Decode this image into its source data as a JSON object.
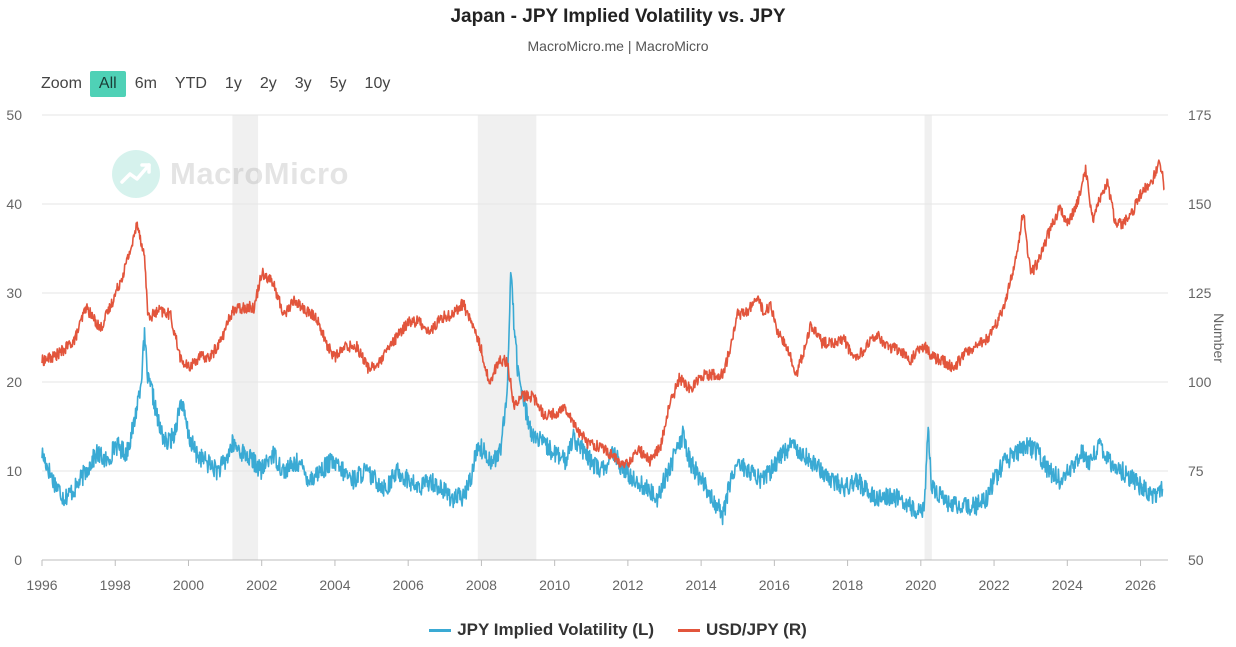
{
  "header": {
    "title": "Japan - JPY Implied Volatility vs. JPY",
    "subtitle": "MacroMicro.me | MacroMicro"
  },
  "zoom": {
    "label": "Zoom",
    "buttons": [
      "All",
      "6m",
      "YTD",
      "1y",
      "2y",
      "3y",
      "5y",
      "10y"
    ],
    "active": "All"
  },
  "watermark": {
    "text": "MacroMicro"
  },
  "chart_data": {
    "type": "line",
    "title": "Japan - JPY Implied Volatility vs. JPY",
    "subtitle": "MacroMicro.me | MacroMicro",
    "xlim": [
      1996.0,
      2026.75
    ],
    "x_ticks": [
      "1996",
      "1998",
      "2000",
      "2002",
      "2004",
      "2006",
      "2008",
      "2010",
      "2012",
      "2014",
      "2016",
      "2018",
      "2020",
      "2022",
      "2024",
      "2026"
    ],
    "y_left": {
      "ylim": [
        0,
        50
      ],
      "ticks": [
        "0",
        "10",
        "20",
        "30",
        "40",
        "50"
      ],
      "label": ""
    },
    "y_right": {
      "ylim": [
        50,
        175
      ],
      "ticks": [
        "50",
        "75",
        "100",
        "125",
        "150",
        "175"
      ],
      "label": "Number"
    },
    "grid": true,
    "legend_position": "bottom",
    "shaded_ranges": [
      [
        2001.2,
        2001.9
      ],
      [
        2007.9,
        2009.5
      ],
      [
        2020.1,
        2020.3
      ]
    ],
    "series": [
      {
        "name": "JPY Implied Volatility (L)",
        "axis": "left",
        "color": "#3aaad4",
        "points": [
          [
            1996.0,
            12
          ],
          [
            1996.3,
            9
          ],
          [
            1996.6,
            7
          ],
          [
            1996.9,
            8
          ],
          [
            1997.2,
            10
          ],
          [
            1997.5,
            12
          ],
          [
            1997.8,
            11
          ],
          [
            1998.0,
            13
          ],
          [
            1998.3,
            12
          ],
          [
            1998.5,
            15
          ],
          [
            1998.7,
            20
          ],
          [
            1998.8,
            25
          ],
          [
            1998.9,
            20
          ],
          [
            1999.0,
            19
          ],
          [
            1999.2,
            15
          ],
          [
            1999.4,
            13
          ],
          [
            1999.6,
            14
          ],
          [
            1999.8,
            18
          ],
          [
            2000.0,
            14
          ],
          [
            2000.2,
            12
          ],
          [
            2000.5,
            11
          ],
          [
            2000.8,
            10
          ],
          [
            2001.0,
            11
          ],
          [
            2001.2,
            13
          ],
          [
            2001.5,
            12
          ],
          [
            2001.8,
            11
          ],
          [
            2002.0,
            10
          ],
          [
            2002.3,
            12
          ],
          [
            2002.6,
            10
          ],
          [
            2003.0,
            11
          ],
          [
            2003.3,
            9
          ],
          [
            2003.6,
            10
          ],
          [
            2003.9,
            11
          ],
          [
            2004.2,
            10
          ],
          [
            2004.5,
            9
          ],
          [
            2004.8,
            10
          ],
          [
            2005.1,
            9
          ],
          [
            2005.4,
            8
          ],
          [
            2005.7,
            10
          ],
          [
            2006.0,
            9
          ],
          [
            2006.3,
            8
          ],
          [
            2006.6,
            9
          ],
          [
            2006.9,
            8
          ],
          [
            2007.2,
            7
          ],
          [
            2007.5,
            7
          ],
          [
            2007.7,
            9
          ],
          [
            2007.9,
            13
          ],
          [
            2008.1,
            12
          ],
          [
            2008.3,
            11
          ],
          [
            2008.5,
            12
          ],
          [
            2008.7,
            18
          ],
          [
            2008.8,
            33
          ],
          [
            2008.9,
            26
          ],
          [
            2009.0,
            21
          ],
          [
            2009.2,
            17
          ],
          [
            2009.4,
            14
          ],
          [
            2009.7,
            13
          ],
          [
            2010.0,
            12
          ],
          [
            2010.3,
            11
          ],
          [
            2010.5,
            14
          ],
          [
            2010.8,
            12
          ],
          [
            2011.0,
            11
          ],
          [
            2011.3,
            10
          ],
          [
            2011.6,
            12
          ],
          [
            2011.9,
            10
          ],
          [
            2012.2,
            9
          ],
          [
            2012.5,
            8
          ],
          [
            2012.8,
            7
          ],
          [
            2013.0,
            9
          ],
          [
            2013.3,
            12
          ],
          [
            2013.5,
            14
          ],
          [
            2013.7,
            11
          ],
          [
            2014.0,
            9
          ],
          [
            2014.3,
            7
          ],
          [
            2014.6,
            5
          ],
          [
            2014.8,
            9
          ],
          [
            2015.0,
            11
          ],
          [
            2015.3,
            10
          ],
          [
            2015.6,
            9
          ],
          [
            2015.9,
            10
          ],
          [
            2016.2,
            12
          ],
          [
            2016.5,
            13
          ],
          [
            2016.8,
            12
          ],
          [
            2017.0,
            11
          ],
          [
            2017.3,
            10
          ],
          [
            2017.6,
            9
          ],
          [
            2017.9,
            8
          ],
          [
            2018.2,
            9
          ],
          [
            2018.5,
            8
          ],
          [
            2018.8,
            7
          ],
          [
            2019.1,
            7
          ],
          [
            2019.4,
            7
          ],
          [
            2019.7,
            6
          ],
          [
            2019.9,
            5
          ],
          [
            2020.1,
            6
          ],
          [
            2020.2,
            15
          ],
          [
            2020.3,
            8
          ],
          [
            2020.6,
            7
          ],
          [
            2020.9,
            6
          ],
          [
            2021.2,
            6
          ],
          [
            2021.5,
            6
          ],
          [
            2021.8,
            7
          ],
          [
            2022.0,
            9
          ],
          [
            2022.3,
            11
          ],
          [
            2022.6,
            12
          ],
          [
            2022.9,
            13
          ],
          [
            2023.2,
            12
          ],
          [
            2023.5,
            10
          ],
          [
            2023.8,
            9
          ],
          [
            2024.1,
            10
          ],
          [
            2024.4,
            12
          ],
          [
            2024.6,
            11
          ],
          [
            2024.9,
            13
          ],
          [
            2025.2,
            11
          ],
          [
            2025.5,
            10
          ],
          [
            2025.8,
            9
          ],
          [
            2026.1,
            8
          ],
          [
            2026.4,
            7
          ],
          [
            2026.6,
            8
          ]
        ]
      },
      {
        "name": "USD/JPY (R)",
        "axis": "right",
        "color": "#e2553c",
        "points": [
          [
            1996.0,
            106
          ],
          [
            1996.3,
            107
          ],
          [
            1996.6,
            109
          ],
          [
            1996.9,
            112
          ],
          [
            1997.2,
            121
          ],
          [
            1997.4,
            118
          ],
          [
            1997.6,
            115
          ],
          [
            1997.9,
            122
          ],
          [
            1998.2,
            130
          ],
          [
            1998.5,
            140
          ],
          [
            1998.6,
            145
          ],
          [
            1998.8,
            135
          ],
          [
            1998.9,
            118
          ],
          [
            1999.2,
            120
          ],
          [
            1999.5,
            119
          ],
          [
            1999.8,
            106
          ],
          [
            2000.0,
            104
          ],
          [
            2000.3,
            107
          ],
          [
            2000.6,
            107
          ],
          [
            2000.9,
            112
          ],
          [
            2001.2,
            120
          ],
          [
            2001.5,
            121
          ],
          [
            2001.8,
            121
          ],
          [
            2002.0,
            131
          ],
          [
            2002.3,
            128
          ],
          [
            2002.6,
            119
          ],
          [
            2002.9,
            123
          ],
          [
            2003.2,
            120
          ],
          [
            2003.5,
            118
          ],
          [
            2003.8,
            110
          ],
          [
            2004.0,
            107
          ],
          [
            2004.3,
            110
          ],
          [
            2004.6,
            110
          ],
          [
            2004.9,
            104
          ],
          [
            2005.2,
            105
          ],
          [
            2005.5,
            110
          ],
          [
            2005.8,
            114
          ],
          [
            2006.0,
            117
          ],
          [
            2006.3,
            117
          ],
          [
            2006.6,
            114
          ],
          [
            2006.9,
            118
          ],
          [
            2007.2,
            119
          ],
          [
            2007.5,
            122
          ],
          [
            2007.8,
            115
          ],
          [
            2008.0,
            109
          ],
          [
            2008.2,
            100
          ],
          [
            2008.5,
            106
          ],
          [
            2008.7,
            106
          ],
          [
            2008.9,
            93
          ],
          [
            2009.1,
            96
          ],
          [
            2009.4,
            96
          ],
          [
            2009.7,
            91
          ],
          [
            2010.0,
            91
          ],
          [
            2010.3,
            93
          ],
          [
            2010.6,
            87
          ],
          [
            2010.9,
            83
          ],
          [
            2011.2,
            82
          ],
          [
            2011.5,
            80
          ],
          [
            2011.8,
            77
          ],
          [
            2012.0,
            77
          ],
          [
            2012.3,
            81
          ],
          [
            2012.6,
            78
          ],
          [
            2012.9,
            82
          ],
          [
            2013.1,
            92
          ],
          [
            2013.4,
            101
          ],
          [
            2013.7,
            98
          ],
          [
            2014.0,
            102
          ],
          [
            2014.3,
            102
          ],
          [
            2014.6,
            102
          ],
          [
            2014.8,
            110
          ],
          [
            2015.0,
            119
          ],
          [
            2015.3,
            120
          ],
          [
            2015.5,
            124
          ],
          [
            2015.7,
            120
          ],
          [
            2015.9,
            121
          ],
          [
            2016.1,
            114
          ],
          [
            2016.4,
            108
          ],
          [
            2016.6,
            102
          ],
          [
            2016.9,
            112
          ],
          [
            2017.0,
            116
          ],
          [
            2017.3,
            111
          ],
          [
            2017.6,
            111
          ],
          [
            2017.9,
            112
          ],
          [
            2018.2,
            106
          ],
          [
            2018.5,
            110
          ],
          [
            2018.8,
            113
          ],
          [
            2019.1,
            110
          ],
          [
            2019.4,
            109
          ],
          [
            2019.7,
            106
          ],
          [
            2019.9,
            109
          ],
          [
            2020.1,
            110
          ],
          [
            2020.3,
            107
          ],
          [
            2020.6,
            106
          ],
          [
            2020.9,
            104
          ],
          [
            2021.2,
            108
          ],
          [
            2021.5,
            110
          ],
          [
            2021.8,
            112
          ],
          [
            2022.0,
            115
          ],
          [
            2022.3,
            122
          ],
          [
            2022.6,
            135
          ],
          [
            2022.8,
            148
          ],
          [
            2023.0,
            130
          ],
          [
            2023.2,
            134
          ],
          [
            2023.5,
            142
          ],
          [
            2023.8,
            149
          ],
          [
            2024.0,
            144
          ],
          [
            2024.3,
            151
          ],
          [
            2024.5,
            160
          ],
          [
            2024.7,
            145
          ],
          [
            2024.9,
            152
          ],
          [
            2025.1,
            156
          ],
          [
            2025.3,
            145
          ],
          [
            2025.5,
            144
          ],
          [
            2025.8,
            148
          ],
          [
            2026.0,
            153
          ],
          [
            2026.3,
            156
          ],
          [
            2026.5,
            161
          ],
          [
            2026.6,
            158
          ],
          [
            2026.65,
            154
          ]
        ]
      }
    ]
  },
  "colors": {
    "vol": "#3aaad4",
    "usdjpy": "#e2553c",
    "accent": "#4fd1b6",
    "grid": "#e6e6e6",
    "shade": "#f0f0f0"
  },
  "icons": {
    "watermark_logo": "chart-trend-logo-icon"
  }
}
